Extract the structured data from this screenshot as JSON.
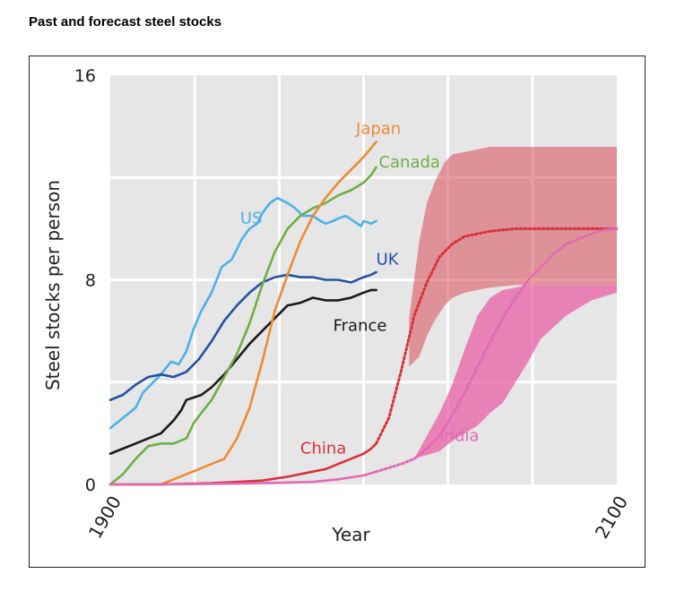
{
  "title": "Past and forecast steel stocks",
  "chart_data": {
    "type": "line",
    "xlabel": "Year",
    "ylabel": "Steel stocks per person",
    "xlim": [
      1900,
      2100
    ],
    "ylim": [
      0,
      16
    ],
    "x_tick_labels": [
      "1900",
      "2100"
    ],
    "y_tick_labels": [
      "0",
      "8",
      "16"
    ],
    "grid": true,
    "colors": {
      "US": "#4cb1e8",
      "UK": "#2452a3",
      "France": "#1a1a1a",
      "Canada": "#6fae45",
      "Japan": "#ee8a35",
      "China": "#d9323a",
      "India": "#e06bb5",
      "china_band": "#d94a58",
      "india_band": "#e8559f",
      "plot_bg": "#e6e6e6",
      "grid": "#ffffff"
    },
    "series": [
      {
        "name": "US",
        "x": [
          1900,
          1905,
          1910,
          1913,
          1917,
          1920,
          1924,
          1927,
          1930,
          1933,
          1936,
          1940,
          1944,
          1948,
          1952,
          1955,
          1958,
          1960,
          1963,
          1966,
          1970,
          1973,
          1976,
          1980,
          1983,
          1985,
          1988,
          1990,
          1993,
          1996,
          1999,
          2000,
          2003,
          2005
        ],
        "y": [
          2.2,
          2.6,
          3.0,
          3.6,
          4.0,
          4.3,
          4.8,
          4.7,
          5.2,
          6.1,
          6.8,
          7.5,
          8.5,
          8.8,
          9.6,
          10.0,
          10.2,
          10.6,
          11.0,
          11.2,
          11.0,
          10.8,
          10.5,
          10.5,
          10.3,
          10.2,
          10.3,
          10.4,
          10.5,
          10.3,
          10.1,
          10.3,
          10.2,
          10.3
        ]
      },
      {
        "name": "UK",
        "x": [
          1900,
          1905,
          1910,
          1915,
          1920,
          1925,
          1930,
          1935,
          1940,
          1945,
          1950,
          1955,
          1960,
          1965,
          1970,
          1975,
          1980,
          1985,
          1990,
          1995,
          2000,
          2003,
          2005
        ],
        "y": [
          3.3,
          3.5,
          3.9,
          4.2,
          4.3,
          4.2,
          4.4,
          4.9,
          5.6,
          6.4,
          7.0,
          7.5,
          7.9,
          8.1,
          8.2,
          8.1,
          8.1,
          8.0,
          8.0,
          7.9,
          8.1,
          8.2,
          8.3
        ]
      },
      {
        "name": "France",
        "x": [
          1900,
          1905,
          1910,
          1915,
          1920,
          1925,
          1928,
          1930,
          1933,
          1936,
          1940,
          1945,
          1950,
          1955,
          1960,
          1965,
          1970,
          1975,
          1980,
          1985,
          1990,
          1995,
          2000,
          2003,
          2005
        ],
        "y": [
          1.2,
          1.4,
          1.6,
          1.8,
          2.0,
          2.5,
          2.9,
          3.3,
          3.4,
          3.5,
          3.8,
          4.3,
          4.9,
          5.5,
          6.0,
          6.5,
          7.0,
          7.1,
          7.3,
          7.2,
          7.2,
          7.3,
          7.5,
          7.6,
          7.6
        ]
      },
      {
        "name": "Canada",
        "x": [
          1900,
          1905,
          1910,
          1915,
          1920,
          1925,
          1930,
          1933,
          1936,
          1940,
          1945,
          1950,
          1955,
          1960,
          1965,
          1970,
          1975,
          1980,
          1985,
          1990,
          1995,
          2000,
          2003,
          2005
        ],
        "y": [
          0.0,
          0.4,
          1.0,
          1.5,
          1.6,
          1.6,
          1.8,
          2.4,
          2.8,
          3.3,
          4.2,
          5.1,
          6.3,
          7.8,
          9.1,
          10.0,
          10.5,
          10.8,
          11.0,
          11.3,
          11.5,
          11.8,
          12.1,
          12.4
        ]
      },
      {
        "name": "Japan",
        "x": [
          1900,
          1910,
          1920,
          1925,
          1930,
          1935,
          1940,
          1945,
          1950,
          1955,
          1960,
          1965,
          1970,
          1975,
          1980,
          1985,
          1990,
          1995,
          2000,
          2005
        ],
        "y": [
          0.0,
          0.0,
          0.0,
          0.2,
          0.4,
          0.6,
          0.8,
          1.0,
          1.8,
          3.0,
          4.8,
          6.8,
          8.2,
          9.5,
          10.5,
          11.2,
          11.8,
          12.3,
          12.8,
          13.4
        ]
      },
      {
        "name": "China",
        "x": [
          1900,
          1920,
          1940,
          1960,
          1970,
          1980,
          1985,
          1990,
          1995,
          2000,
          2003,
          2005
        ],
        "y": [
          0.0,
          0.0,
          0.05,
          0.15,
          0.3,
          0.5,
          0.6,
          0.8,
          1.0,
          1.2,
          1.4,
          1.6
        ]
      },
      {
        "name": "China (forecast)",
        "dashed": true,
        "x": [
          2005,
          2010,
          2015,
          2020,
          2025,
          2030,
          2035,
          2040,
          2045,
          2050,
          2055,
          2060,
          2070,
          2080,
          2090,
          2100
        ],
        "y": [
          1.6,
          2.6,
          4.5,
          6.6,
          7.9,
          8.9,
          9.4,
          9.7,
          9.8,
          9.9,
          9.95,
          10.0,
          10.0,
          10.0,
          10.0,
          10.0
        ]
      },
      {
        "name": "India",
        "x": [
          1900,
          1920,
          1940,
          1960,
          1980,
          1990,
          2000,
          2005
        ],
        "y": [
          0.0,
          0.0,
          0.02,
          0.05,
          0.1,
          0.2,
          0.35,
          0.5
        ]
      },
      {
        "name": "India (forecast)",
        "dashed": true,
        "x": [
          2005,
          2015,
          2020,
          2025,
          2030,
          2035,
          2040,
          2045,
          2050,
          2055,
          2060,
          2065,
          2070,
          2075,
          2080,
          2085,
          2090,
          2095,
          2100
        ],
        "y": [
          0.5,
          0.8,
          1.0,
          1.4,
          1.9,
          2.7,
          3.6,
          4.6,
          5.6,
          6.5,
          7.3,
          8.0,
          8.5,
          9.0,
          9.4,
          9.6,
          9.8,
          9.95,
          10.0
        ]
      }
    ],
    "bands": [
      {
        "name": "China range",
        "x": [
          2018,
          2022,
          2025,
          2028,
          2032,
          2035,
          2040,
          2045,
          2050,
          2060,
          2070,
          2080,
          2090,
          2100
        ],
        "upper": [
          6.5,
          9.5,
          11.0,
          11.8,
          12.6,
          12.9,
          13.0,
          13.1,
          13.2,
          13.2,
          13.2,
          13.2,
          13.2,
          13.2
        ],
        "lower": [
          4.6,
          5.0,
          5.8,
          6.4,
          7.0,
          7.3,
          7.5,
          7.6,
          7.7,
          7.8,
          7.8,
          7.8,
          7.8,
          7.8
        ]
      },
      {
        "name": "India range",
        "x": [
          2020,
          2030,
          2035,
          2040,
          2045,
          2050,
          2055,
          2060,
          2065,
          2070,
          2080,
          2090,
          2100
        ],
        "upper": [
          1.0,
          2.8,
          3.9,
          5.3,
          6.6,
          7.3,
          7.6,
          7.7,
          7.8,
          7.8,
          7.8,
          7.8,
          7.8
        ],
        "lower": [
          1.0,
          1.3,
          1.7,
          2.0,
          2.3,
          2.8,
          3.2,
          4.0,
          4.8,
          5.7,
          6.6,
          7.2,
          7.5
        ]
      }
    ],
    "series_labels": {
      "US": "US",
      "UK": "UK",
      "France": "France",
      "Canada": "Canada",
      "Japan": "Japan",
      "China": "China",
      "India": "India"
    }
  }
}
